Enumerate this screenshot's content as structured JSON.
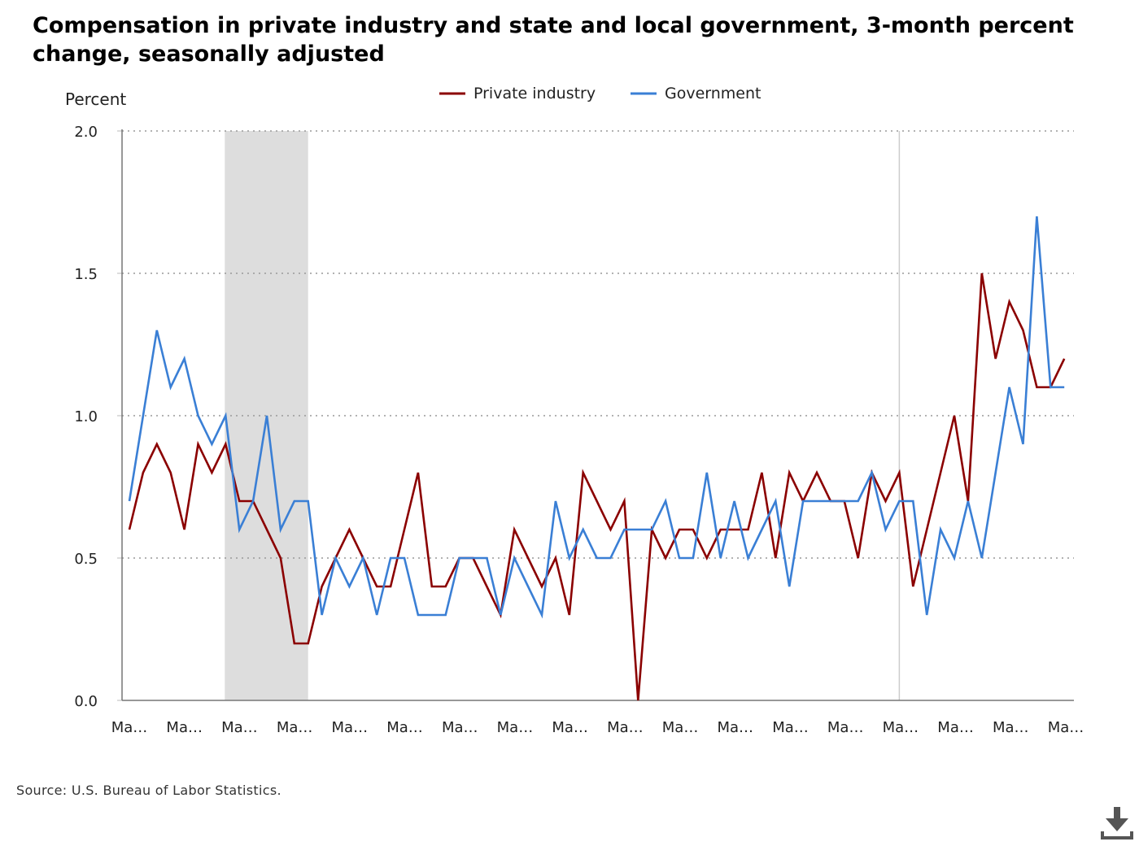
{
  "title": "Compensation in private industry and state and local government, 3-month percent change, seasonally adjusted",
  "source": "Source: U.S. Bureau of Labor Statistics.",
  "download_icon": "download-icon",
  "chart_data": {
    "type": "line",
    "ylabel": "Percent",
    "ylim": [
      0,
      2.0
    ],
    "yticks": [
      "0.0",
      "0.5",
      "1.0",
      "1.5",
      "2.0"
    ],
    "xtick_labels": [
      "Ma…",
      "Ma…",
      "Ma…",
      "Ma…",
      "Ma…",
      "Ma…",
      "Ma…",
      "Ma…",
      "Ma…",
      "Ma…",
      "Ma…",
      "Ma…",
      "Ma…",
      "Ma…",
      "Ma…",
      "Ma…",
      "Ma…",
      "Ma…"
    ],
    "grid": "horizontal dotted",
    "legend": "top-center",
    "shaded_period": [
      7,
      13
    ],
    "reference_line_index": 56,
    "series": [
      {
        "name": "Private industry",
        "color": "#8b0000",
        "values": [
          0.6,
          0.8,
          0.9,
          0.8,
          0.6,
          0.9,
          0.8,
          0.9,
          0.7,
          0.7,
          0.6,
          0.5,
          0.2,
          0.2,
          0.4,
          0.5,
          0.6,
          0.5,
          0.4,
          0.4,
          0.6,
          0.8,
          0.4,
          0.4,
          0.5,
          0.5,
          0.4,
          0.3,
          0.6,
          0.5,
          0.4,
          0.5,
          0.3,
          0.8,
          0.7,
          0.6,
          0.7,
          0.0,
          0.6,
          0.5,
          0.6,
          0.6,
          0.5,
          0.6,
          0.6,
          0.6,
          0.8,
          0.5,
          0.8,
          0.7,
          0.8,
          0.7,
          0.7,
          0.5,
          0.8,
          0.7,
          0.8,
          0.4,
          0.6,
          0.8,
          1.0,
          0.7,
          1.5,
          1.2,
          1.4,
          1.3,
          1.1,
          1.1,
          1.2
        ]
      },
      {
        "name": "Government",
        "color": "#3a7fd5",
        "values": [
          0.7,
          1.0,
          1.3,
          1.1,
          1.2,
          1.0,
          0.9,
          1.0,
          0.6,
          0.7,
          1.0,
          0.6,
          0.7,
          0.7,
          0.3,
          0.5,
          0.4,
          0.5,
          0.3,
          0.5,
          0.5,
          0.3,
          0.3,
          0.3,
          0.5,
          0.5,
          0.5,
          0.3,
          0.5,
          0.4,
          0.3,
          0.7,
          0.5,
          0.6,
          0.5,
          0.5,
          0.6,
          0.6,
          0.6,
          0.7,
          0.5,
          0.5,
          0.8,
          0.5,
          0.7,
          0.5,
          0.6,
          0.7,
          0.4,
          0.7,
          0.7,
          0.7,
          0.7,
          0.7,
          0.8,
          0.6,
          0.7,
          0.7,
          0.3,
          0.6,
          0.5,
          0.7,
          0.5,
          0.8,
          1.1,
          0.9,
          1.7,
          1.1,
          1.1
        ]
      }
    ]
  }
}
